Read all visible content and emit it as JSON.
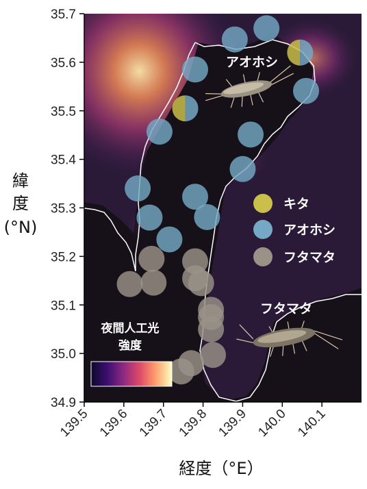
{
  "chart_data": {
    "type": "scatter",
    "xlabel": "経度（°E）",
    "ylabel_lines": [
      "緯",
      "度",
      "(°N)"
    ],
    "xlim": [
      139.5,
      140.2
    ],
    "ylim": [
      34.9,
      35.7
    ],
    "xticks": [
      "139.5",
      "139.6",
      "139.7",
      "139.8",
      "139.9",
      "140.0",
      "140.1"
    ],
    "yticks": [
      "35.7",
      "35.6",
      "35.5",
      "35.4",
      "35.3",
      "35.2",
      "35.1",
      "35.0",
      "34.9"
    ],
    "colorbar_label_lines": [
      "夜間人工光",
      "強度"
    ],
    "colorbar_colors": [
      "#0d0829",
      "#3b0f70",
      "#8c2981",
      "#de4968",
      "#fe9f6d",
      "#fcfdbf"
    ],
    "map_colors": {
      "dark": "#141019",
      "land": "#2b1b3a",
      "coast": "#ffffff"
    },
    "legend": [
      {
        "label": "キタ",
        "color": "#c9bf4a"
      },
      {
        "label": "アオホシ",
        "color": "#74a8c4"
      },
      {
        "label": "フタマタ",
        "color": "#9a9288"
      }
    ],
    "annotations": {
      "top": "アオホシ",
      "bottom": "フタマタ"
    },
    "series": [
      {
        "name": "アオホシ",
        "color": "#74a8c4",
        "points": [
          [
            139.88,
            35.647
          ],
          [
            139.96,
            35.67
          ],
          [
            139.78,
            35.585
          ],
          [
            140.06,
            35.541
          ],
          [
            139.69,
            35.457
          ],
          [
            139.92,
            35.451
          ],
          [
            139.9,
            35.38
          ],
          [
            139.635,
            35.34
          ],
          [
            139.78,
            35.323
          ],
          [
            139.665,
            35.28
          ],
          [
            139.81,
            35.281
          ],
          [
            139.715,
            35.235
          ]
        ]
      },
      {
        "name": "キタ/アオホシ",
        "color": "#c9bf4a",
        "split": true,
        "points": [
          [
            139.755,
            35.505
          ],
          [
            140.045,
            35.62
          ]
        ]
      },
      {
        "name": "フタマタ",
        "color": "#9a9288",
        "points": [
          [
            139.67,
            35.195
          ],
          [
            139.78,
            35.19
          ],
          [
            139.78,
            35.155
          ],
          [
            139.615,
            35.143
          ],
          [
            139.675,
            35.146
          ],
          [
            139.795,
            35.145
          ],
          [
            139.82,
            35.09
          ],
          [
            139.82,
            35.075
          ],
          [
            139.82,
            35.05
          ],
          [
            139.825,
            34.997
          ],
          [
            139.77,
            34.98
          ],
          [
            139.745,
            34.963
          ]
        ]
      }
    ]
  }
}
